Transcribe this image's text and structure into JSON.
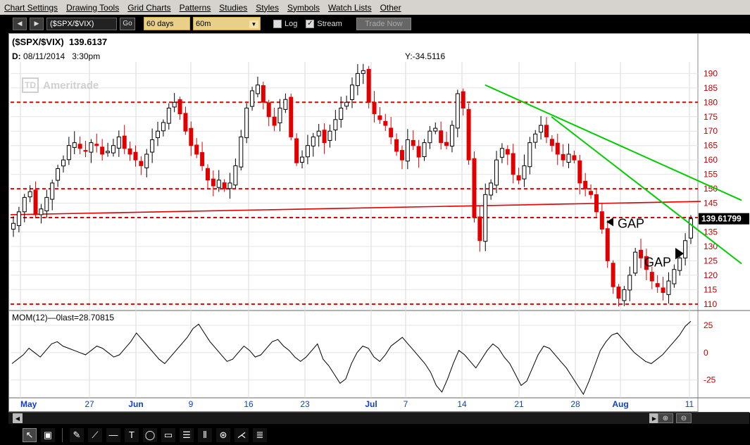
{
  "menu": [
    "Chart Settings",
    "Drawing Tools",
    "Grid Charts",
    "Patterns",
    "Studies",
    "Styles",
    "Symbols",
    "Watch Lists",
    "Other"
  ],
  "toolbar": {
    "back_icon": "back-icon",
    "forward_icon": "forward-icon",
    "symbol_value": "($SPX/$VIX)",
    "go_label": "Go",
    "range_value": "60 days",
    "interval_value": "60m",
    "log_label": "Log",
    "log_checked": false,
    "stream_label": "Stream",
    "stream_checked": true,
    "trade_label": "Trade Now"
  },
  "chart": {
    "symbol": "($SPX/$VIX)",
    "last_value": "139.6137",
    "date_prefix": "D:",
    "date": "08/11/2014",
    "time": "3:30pm",
    "crosshair_y": "Y:-34.5116",
    "logo_td": "TD",
    "logo_name": "Ameritrade",
    "price_tag": "139.61799",
    "gap_labels": [
      "GAP",
      "GAP"
    ],
    "mom_label": "MOM(12)",
    "mom_zero": "0",
    "mom_last": "last=28.70815",
    "colors": {
      "up": "#000000",
      "down": "#e00000",
      "trendline": "#00cc00",
      "support": "#e00000",
      "momentum": "#000000"
    }
  },
  "chart_data": {
    "type": "candlestick",
    "price_axis": {
      "ticks": [
        110,
        115,
        120,
        125,
        130,
        135,
        140,
        145,
        150,
        155,
        160,
        165,
        170,
        175,
        180,
        185,
        190
      ],
      "range": [
        108,
        194
      ]
    },
    "momentum_axis": {
      "ticks": [
        25,
        0,
        -25
      ]
    },
    "x_tick_labels": [
      "May",
      "27",
      "Jun",
      "9",
      "16",
      "23",
      "Jul",
      "7",
      "14",
      "21",
      "28",
      "Aug",
      "11"
    ],
    "horizontal_levels": [
      180,
      150,
      140,
      110
    ],
    "close_series_approx": [
      138,
      142,
      147,
      149,
      141,
      143,
      147,
      152,
      157,
      160,
      165,
      166,
      164,
      163,
      166,
      165,
      162,
      163,
      165,
      168,
      164,
      162,
      160,
      158,
      162,
      167,
      170,
      173,
      178,
      180,
      176,
      170,
      165,
      162,
      158,
      153,
      151,
      153,
      150,
      152,
      158,
      168,
      178,
      184,
      186,
      180,
      175,
      172,
      178,
      181,
      168,
      159,
      161,
      165,
      168,
      170,
      166,
      170,
      174,
      178,
      180,
      186,
      190,
      191,
      180,
      176,
      174,
      172,
      168,
      163,
      160,
      167,
      165,
      161,
      166,
      170,
      171,
      166,
      165,
      172,
      183,
      178,
      160,
      140,
      132,
      148,
      152,
      160,
      164,
      162,
      155,
      153,
      158,
      166,
      169,
      172,
      168,
      165,
      162,
      160,
      162,
      160,
      152,
      150,
      148,
      142,
      136,
      125,
      116,
      112,
      115,
      120,
      128,
      126,
      122,
      118,
      116,
      114,
      118,
      122,
      126,
      132,
      139.6
    ],
    "momentum_series_approx": [
      -10,
      -6,
      -2,
      4,
      0,
      -4,
      2,
      8,
      10,
      6,
      4,
      2,
      0,
      -2,
      2,
      6,
      4,
      0,
      -4,
      -2,
      4,
      10,
      18,
      12,
      6,
      0,
      -6,
      -10,
      -4,
      2,
      8,
      14,
      22,
      26,
      18,
      10,
      4,
      -2,
      -8,
      -6,
      0,
      6,
      2,
      -4,
      -2,
      4,
      10,
      12,
      6,
      2,
      -4,
      -8,
      -4,
      2,
      8,
      -6,
      -12,
      -20,
      -28,
      -24,
      -10,
      0,
      6,
      4,
      -4,
      -8,
      -2,
      6,
      10,
      14,
      8,
      2,
      -4,
      -10,
      -18,
      -30,
      -36,
      -24,
      -10,
      2,
      -2,
      -8,
      -14,
      -6,
      2,
      8,
      4,
      -4,
      -10,
      -20,
      -30,
      -26,
      -14,
      -2,
      6,
      4,
      -2,
      -8,
      -14,
      -22,
      -30,
      -38,
      -26,
      -12,
      2,
      10,
      16,
      18,
      12,
      6,
      0,
      -4,
      -8,
      -10,
      -6,
      -2,
      4,
      10,
      16,
      24,
      28.7
    ]
  }
}
